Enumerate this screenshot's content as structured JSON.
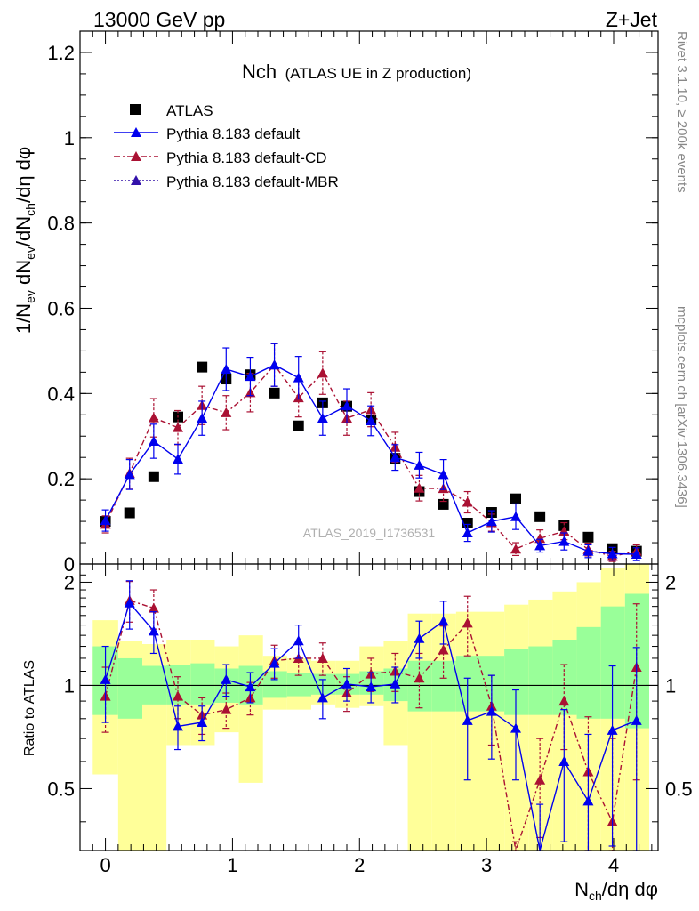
{
  "header": {
    "energy_label": "13000 GeV pp",
    "process_label": "Z+Jet"
  },
  "side_text": {
    "rivet": "Rivet 3.1.10, ≥ 200k events",
    "mcplots": "mcplots.cern.ch [arXiv:1306.3436]"
  },
  "watermark": "ATLAS_2019_I1736531",
  "colors": {
    "data": "#000000",
    "default": "#0000ee",
    "cd": "#aa1133",
    "mbr": "#3311aa",
    "band_inner": "#99ff99",
    "band_outer": "#ffff99"
  },
  "chart_data": [
    {
      "type": "scatter",
      "title": "Nch",
      "subtitle": "(ATLAS UE in Z production)",
      "ylabel_parts": [
        "1/N",
        "ev",
        " dN",
        "ev",
        "/dN",
        "ch",
        "/dη dφ"
      ],
      "xlim": [
        -0.2,
        4.35
      ],
      "ylim": [
        0,
        1.25
      ],
      "y_ticks": [
        0,
        0.2,
        0.4,
        0.6,
        0.8,
        1,
        1.2
      ],
      "y_tick_labels": [
        "0",
        "0.2",
        "0.4",
        "0.6",
        "0.8",
        "1",
        "1.2"
      ],
      "x": [
        0.0,
        0.19,
        0.38,
        0.57,
        0.76,
        0.95,
        1.14,
        1.33,
        1.52,
        1.71,
        1.9,
        2.09,
        2.28,
        2.47,
        2.66,
        2.85,
        3.04,
        3.23,
        3.42,
        3.61,
        3.8,
        3.99,
        4.18
      ],
      "series": [
        {
          "name": "ATLAS",
          "style": "data",
          "values": [
            0.1,
            0.12,
            0.205,
            0.345,
            0.462,
            0.434,
            0.444,
            0.401,
            0.324,
            0.378,
            0.37,
            0.338,
            0.248,
            0.17,
            0.14,
            0.096,
            0.121,
            0.153,
            0.111,
            0.09,
            0.063,
            0.036,
            0.03
          ]
        },
        {
          "name": "Pythia 8.183 default",
          "style": "default",
          "values": [
            0.102,
            0.21,
            0.288,
            0.246,
            0.342,
            0.457,
            0.44,
            0.467,
            0.437,
            0.342,
            0.371,
            0.336,
            0.25,
            0.232,
            0.21,
            0.073,
            0.1,
            0.111,
            0.043,
            0.053,
            0.03,
            0.024,
            0.023
          ],
          "errors": [
            0.025,
            0.035,
            0.04,
            0.035,
            0.04,
            0.05,
            0.045,
            0.05,
            0.05,
            0.04,
            0.04,
            0.035,
            0.03,
            0.03,
            0.035,
            0.02,
            0.025,
            0.03,
            0.015,
            0.02,
            0.015,
            0.015,
            0.015
          ]
        },
        {
          "name": "Pythia 8.183 default-CD",
          "style": "cd",
          "values": [
            0.093,
            0.213,
            0.343,
            0.32,
            0.372,
            0.355,
            0.402,
            0.467,
            0.39,
            0.448,
            0.342,
            0.362,
            0.274,
            0.178,
            0.177,
            0.145,
            0.097,
            0.035,
            0.06,
            0.077,
            0.034,
            0.018,
            0.03
          ],
          "errors": [
            0.02,
            0.035,
            0.045,
            0.04,
            0.045,
            0.04,
            0.045,
            0.05,
            0.045,
            0.05,
            0.04,
            0.04,
            0.035,
            0.03,
            0.03,
            0.025,
            0.02,
            0.015,
            0.02,
            0.02,
            0.015,
            0.012,
            0.015
          ]
        },
        {
          "name": "Pythia 8.183 default-MBR",
          "style": "mbr",
          "values": []
        }
      ]
    },
    {
      "type": "scatter",
      "title": "Ratio",
      "ylabel": "Ratio to ATLAS",
      "xlabel_parts": [
        "N",
        "ch",
        "/dη dφ"
      ],
      "xlim": [
        -0.2,
        4.35
      ],
      "ylim": [
        0.33,
        2.26
      ],
      "reference_line": 1,
      "y_ticks": [
        0.5,
        1,
        2
      ],
      "y_tick_labels": [
        "0.5",
        "1",
        "2"
      ],
      "x_ticks": [
        0,
        1,
        2,
        3,
        4
      ],
      "x_tick_labels": [
        "0",
        "1",
        "2",
        "3",
        "4"
      ],
      "bin_edges": [
        -0.1,
        0.1,
        0.29,
        0.48,
        0.67,
        0.86,
        1.05,
        1.24,
        1.43,
        1.62,
        1.81,
        2.0,
        2.19,
        2.38,
        2.57,
        2.76,
        2.95,
        3.14,
        3.33,
        3.52,
        3.71,
        3.9,
        4.09,
        4.28
      ],
      "band_inner_low": [
        0.82,
        0.8,
        0.88,
        0.88,
        0.88,
        0.89,
        0.88,
        0.92,
        0.93,
        0.94,
        0.94,
        0.94,
        0.9,
        0.84,
        0.84,
        0.84,
        0.84,
        0.82,
        0.82,
        0.82,
        0.8,
        0.8,
        0.75
      ],
      "band_inner_high": [
        1.3,
        1.2,
        1.14,
        1.15,
        1.16,
        1.12,
        1.14,
        1.1,
        1.09,
        1.08,
        1.08,
        1.1,
        1.12,
        1.18,
        1.18,
        1.22,
        1.22,
        1.28,
        1.3,
        1.36,
        1.48,
        1.7,
        1.85
      ],
      "band_outer_low": [
        0.55,
        0.33,
        0.33,
        0.67,
        0.67,
        0.73,
        0.52,
        0.85,
        0.85,
        0.88,
        0.86,
        0.87,
        0.67,
        0.33,
        0.33,
        0.33,
        0.33,
        0.33,
        0.33,
        0.33,
        0.33,
        0.33,
        0.33
      ],
      "band_outer_high": [
        1.55,
        1.35,
        1.32,
        1.36,
        1.36,
        1.3,
        1.4,
        1.22,
        1.2,
        1.18,
        1.18,
        1.3,
        1.35,
        1.62,
        1.62,
        1.64,
        1.64,
        1.72,
        1.78,
        1.88,
        2.0,
        2.2,
        2.26
      ],
      "x": [
        0.0,
        0.19,
        0.38,
        0.57,
        0.76,
        0.95,
        1.14,
        1.33,
        1.52,
        1.71,
        1.9,
        2.09,
        2.28,
        2.47,
        2.66,
        2.85,
        3.04,
        3.23,
        3.42,
        3.61,
        3.8,
        3.99,
        4.18
      ],
      "series": [
        {
          "name": "Pythia 8.183 default",
          "style": "default",
          "values": [
            1.04,
            1.74,
            1.44,
            0.76,
            0.78,
            1.04,
            0.99,
            1.16,
            1.35,
            0.92,
            1.01,
            0.99,
            1.01,
            1.37,
            1.54,
            0.79,
            0.84,
            0.75,
            0.3,
            0.6,
            0.46,
            0.74,
            0.79
          ],
          "errors": [
            0.26,
            0.28,
            0.2,
            0.11,
            0.09,
            0.11,
            0.1,
            0.12,
            0.15,
            0.12,
            0.11,
            0.1,
            0.12,
            0.17,
            0.22,
            0.26,
            0.23,
            0.22,
            0.15,
            0.25,
            0.26,
            0.4,
            0.5
          ]
        },
        {
          "name": "Pythia 8.183 default-CD",
          "style": "cd",
          "values": [
            0.93,
            1.77,
            1.68,
            0.93,
            0.82,
            0.85,
            0.92,
            1.18,
            1.2,
            1.2,
            0.95,
            1.08,
            1.1,
            1.05,
            1.27,
            1.52,
            0.87,
            0.25,
            0.53,
            0.9,
            0.56,
            0.4,
            1.13
          ],
          "errors": [
            0.2,
            0.24,
            0.22,
            0.13,
            0.1,
            0.1,
            0.1,
            0.13,
            0.13,
            0.13,
            0.11,
            0.12,
            0.14,
            0.19,
            0.22,
            0.3,
            0.2,
            0.1,
            0.17,
            0.25,
            0.25,
            0.3,
            0.6
          ]
        }
      ]
    }
  ]
}
